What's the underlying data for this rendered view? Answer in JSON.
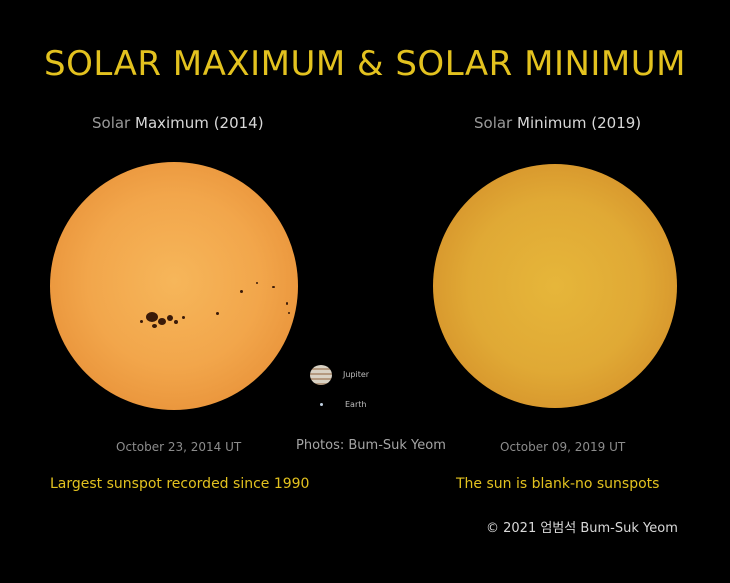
{
  "title": "SOLAR MAXIMUM & SOLAR MINIMUM",
  "left_panel": {
    "heading_prefix": "Solar ",
    "heading_emphasis": "Maximum",
    "heading_year": " (2014)",
    "date": "October 23, 2014 UT",
    "caption": "Largest sunspot recorded since 1990"
  },
  "right_panel": {
    "heading_prefix": "Solar ",
    "heading_emphasis": "Minimum",
    "heading_year": " (2019)",
    "date": "October 09, 2019 UT",
    "caption": "The sun is blank-no sunspots"
  },
  "scale": {
    "jupiter_label": "Jupiter",
    "earth_label": "Earth"
  },
  "credit": "Photos: Bum-Suk Yeom",
  "copyright": "© 2021 엄범석 Bum-Suk Yeom",
  "colors": {
    "title": "#e3c21f",
    "background": "#000000"
  }
}
